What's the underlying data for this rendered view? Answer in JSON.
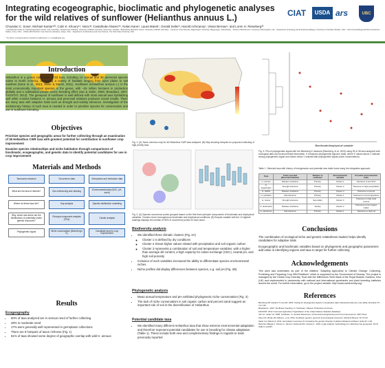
{
  "header": {
    "title_line1": "Integrating ecogeographic, bioclimatic and phylogenetic analyses",
    "title_line2": "for the wild relatives of sunflower (Helianthus annuus L.)",
    "authors": "Chrystian C. Sosa¹, Michael Kantar¹²³, Colin K. Khoury¹⁴, Nora P. Castañeda-Álvarez¹⁵, Nolan Kane⁶, Laura Marek⁷, Gerald Seiler⁸, Harold Achicanoy¹, Vivian Bernau⁹, and Loren H. Rieseberg²³",
    "affiliations": "¹ International Center for Tropical Agriculture (CIAT), Cali, Colombia; ² Department of Botany, University of British Columbia, Vancouver, Canada; ³ Biodiversity Research Centre, University of British Columbia; ⁴ Centre for Crop Diversity, Wageningen University, Wageningen, Netherlands; ⁵ School of Biosciences, University of Birmingham, UK; ⁶ Department of Ecology and Evolutionary Biology, University of Colorado, Boulder, USA; ⁷ North Central Regional Plant Introduction Station, Ames, USA; ⁸ USDA-ARS Northern Crop Science Laboratory, Fargo, USA; ⁹ Department of Horticulture and Crop Science, The Ohio State University, USA",
    "contact": "* To whom correspondence should be addressed: c.c.sosa@cgiar.org"
  },
  "logos": [
    "CIAT",
    "USDA",
    "ars",
    "UBC"
  ],
  "introduction": {
    "heading": "Introduction",
    "text": "Helianthus is a genus composed of 53 taxa, including 14 annual and 39 perennial species native to North America, occupying a variety of habitats ranging from open plains to salt marshes (Kane et al., 2013; Seiler & Marek, 2011). Sunflower (Helianthus annuus L.) is the most economically important species in the genus, with ~25 million hectares in production globally and a substantial private sector breeding effort (Jan & Seiler, 2006; Breadand, 2007; FAOSTAT, 2012). The genepool of sunflower is well defined with most annual taxa hybridizing well while crosses between H. annuus and perennial relatives produces mixed results. There are many taxa with adaptive traits such as drought and salinity tolerance. Investigation of the evolutionary history of such taxa is needed in order to prioritize species for conservation and use in sunflower breeding."
  },
  "objectives": {
    "heading": "Objectives",
    "items": [
      "Prioritize species and geographic areas for further collecting through an examination of 36 Helianthus CWR taxa with greatest potential for contribution to sunflower crop improvement",
      "Examine species relationships and niche habitation through comparisons of bioclimatic, ecogeographic, and genetic data to identify potential candidates for use in crop improvement"
    ]
  },
  "methods": {
    "heading": "Materials and Methods",
    "nodes": [
      "Taxonomic research",
      "Occurrence data",
      "Germplasm and herbarium data",
      "What are the taxa of interest?",
      "Geo-referencing and cleaning",
      "Environmental data (SOC, pH, sand)",
      "Where do these taxa live?",
      "Gap analysis",
      "Species distribution modelling",
      "Why, which and where are the distributions of potentially useful genetic resources?",
      "Principal component analysis (PCA)",
      "Cluster analysis",
      "Phylogenetic signal",
      "Niche conservatism (Blomberg's K)",
      "Candidate taxa for crop improvement"
    ]
  },
  "results": {
    "heading": "Results",
    "subheading": "Ecogeography",
    "bullets": [
      "50% of taxa analyzed are in serious need of further collecting",
      "28% in moderate need",
      "17% were generally well represented in germplasm collections",
      "There are 5 hotspots of taxon richness (Fig. 1)",
      "81% of taxa showed some degree of geographic overlap with wild H. annuus"
    ]
  },
  "figures": {
    "fig1": "Fig. 1: (A) Taxon richness map for all Helianthus CWR taxa analyzed. (B) Map showing hotspots for proposed collecting of high priority taxa.",
    "fig2": "Fig. 2: (A) Species occurrence points grouped based on the first three principle components of bioclimatic and biophysical variables. Clusters show homogeneous bioclimatic and biophysical conditions. (B) Boxplot variable with the 10-highest loadings displays the median of 80% of occurrence points for each taxon.",
    "fig3": "Fig. 3: Plot of phylogenetic signal with the Blomberg K measure (Blomberg, et al. 2003) using 25 of 36 taxa analyzed with ecological data and environmental information. K measures phylogenetic signal in traits, where K values above 1 indicate strong phylogenetic signal and values below 1 indicate little phylogenetic signal (niche conservatism).",
    "fig3_xlabel": "Bioclimatic/biophysical variable"
  },
  "biodiversity": {
    "heading": "Biodiversity analysis",
    "bullets": [
      "We identified three climatic clusters (Fig. 2A)",
      "Cluster 1 is defined by dry conditions",
      "Cluster 2 shows higher values related with precipitation and soil organic carbon",
      "Cluster 3 represents a combination of soil and temperature variables, with a higher than average silt content, a high capacity for cation exchange (CEC), neutral pH, and high soil porosity",
      "Inclusion of such variables increased the ability to differentiate species environmental niches",
      "Niche profiles did display differences between species, e.g. soil pH (Fig. 2B)"
    ]
  },
  "phylogenetic": {
    "heading": "Phylogenetic analysis",
    "bullets": [
      "Mean annual temperature and pH exhibited phylogenetic niche conservatism (Fig. 3)",
      "The lack of niche conservatism in soil organic carbon and percent sand suggest an important role of soil in the diversification of Helianthus"
    ]
  },
  "candidates": {
    "heading": "Potential candidate taxa",
    "bullets": [
      "We identified many different Helianthus taxa that show extreme environmental adaptation and therefore represent potential candidates for use in breeding for climate adaptation (Table 1). These include both new and complementary findings in regards to traits previously reported"
    ]
  },
  "table": {
    "caption": "Table 1. Selected taxa with history of introgression and potential new traits found using the integrative approach.",
    "header": [
      "Taxa",
      "Traits reported (Recommendation)",
      "Relation to sunflower",
      "Environmental variable",
      "Possible environmental traits"
    ],
    "rows": [
      [
        "H. annuus",
        "Disease resistance",
        "Primary",
        "Cluster 1",
        "Tolerance to low SOC"
      ],
      [
        "H. argophyllus",
        "Drought tolerance",
        "Primary",
        "Cluster 2",
        "Tolerance to high precipitation"
      ],
      [
        "H. debilis",
        "Disease resistance",
        "Primary",
        "Cluster 3",
        "Tolerance to low pH"
      ],
      [
        "H. petiolaris",
        "Salt tolerance",
        "Primary",
        "Cluster 1",
        "Tolerance to low temperature"
      ],
      [
        "H. niveus",
        "Drought tolerance",
        "Secondary",
        "Cluster 3",
        "Tolerance to high sand content"
      ],
      [
        "H. divaricatus",
        "Disease resistance",
        "Tertiary",
        "Cluster 2",
        "Tolerance to low organic matter"
      ],
      [
        "H. paradoxus",
        "Salt tolerance",
        "Primary",
        "Cluster 1",
        "Tolerance to high pH"
      ]
    ]
  },
  "conclusions": {
    "heading": "Conclusions",
    "bullets": [
      "The combination of ecological niche and genetic relatedness studies helps identify candidates for adaptive traits",
      "Ecogeographic and bioclimatic variables based on phylogenetic and geographic parameters add value in identifying regions and taxa to target for further collecting"
    ]
  },
  "acknowledgements": {
    "heading": "Acknowledgements",
    "text": "This work was undertaken as part of the initiative \"Adapting Agriculture to Climate Change: Collecting, Protecting and Preparing Crop Wild Relatives\" which is supported by the Government of Norway. The project is managed by the Global Crop Diversity Trust with the Millennium Seed Bank of the Royal Botanic Gardens, Kew (UK) and implemented in partnership with national and international genebanks and plant breeding institutes around the world. For further information, go to the project website: http://www.cwrdiversity.org/"
  },
  "references": {
    "heading": "References",
    "items": [
      "Blomberg SP, Garland T, Ives AR. 2003. Testing for phylogenetic signal in comparative data: behavioral traits are more labile. Evolution 57: 717-745.",
      "Breadand L. 2007. Sunflower breeding. In: Sunflower: Oilseed, Production and Uses.",
      "FAOSTAT. 2012. Food and Agriculture Organization of the United Nations Statistics Database.",
      "Jan CC, Seiler GJ. 2006. Sunflower. In: Genetic Resources, Chromosome Engineering and Crop Improvement. CRC Press.",
      "Kane NC, Burke JM, Marek L, et al. 2013. Sunflower genetic, genomic and ecological resources. Mol Ecol Resour 13: 10-20.",
      "Seiler GJ, Marek LF. 2011. Germplasm resources for increasing the genetic diversity of global cultivated sunflower. Helia 34: 1-20.",
      "Ramírez-Villegas J, Khoury C, Jarvis A, Debouck DG, Guarino L. 2010. A gap analysis methodology for collecting crop genepools. PLoS ONE 5: e13497."
    ]
  }
}
